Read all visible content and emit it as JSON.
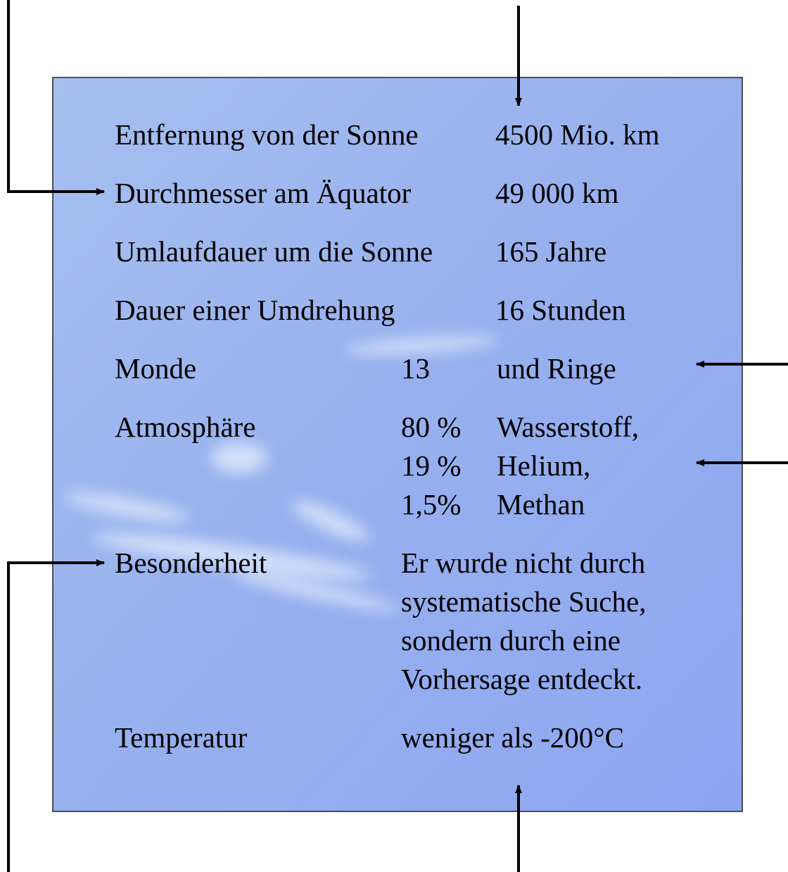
{
  "table": {
    "rows": [
      {
        "label": "Entfernung von der Sonne",
        "value": "4500 Mio. km"
      },
      {
        "label": "Durchmesser am Äquator",
        "value": "49 000 km"
      },
      {
        "label": "Umlaufdauer um die Sonne",
        "value": "165 Jahre"
      },
      {
        "label": "Dauer einer Umdrehung",
        "value": "16 Stunden"
      },
      {
        "label": "Monde",
        "value": "13",
        "note": "und Ringe"
      },
      {
        "label": "Atmosphäre",
        "parts": [
          {
            "share": "80 %",
            "gas": "Wasserstoff,"
          },
          {
            "share": "19 %",
            "gas": "Helium,"
          },
          {
            "share": "1,5%",
            "gas": "Methan"
          }
        ]
      },
      {
        "label": "Besonderheit",
        "lines": [
          "Er wurde nicht durch",
          "systematische Suche,",
          "sondern durch eine",
          "Vorhersage entdeckt."
        ]
      },
      {
        "label": "Temperatur",
        "value": "weniger als -200°C"
      }
    ]
  }
}
